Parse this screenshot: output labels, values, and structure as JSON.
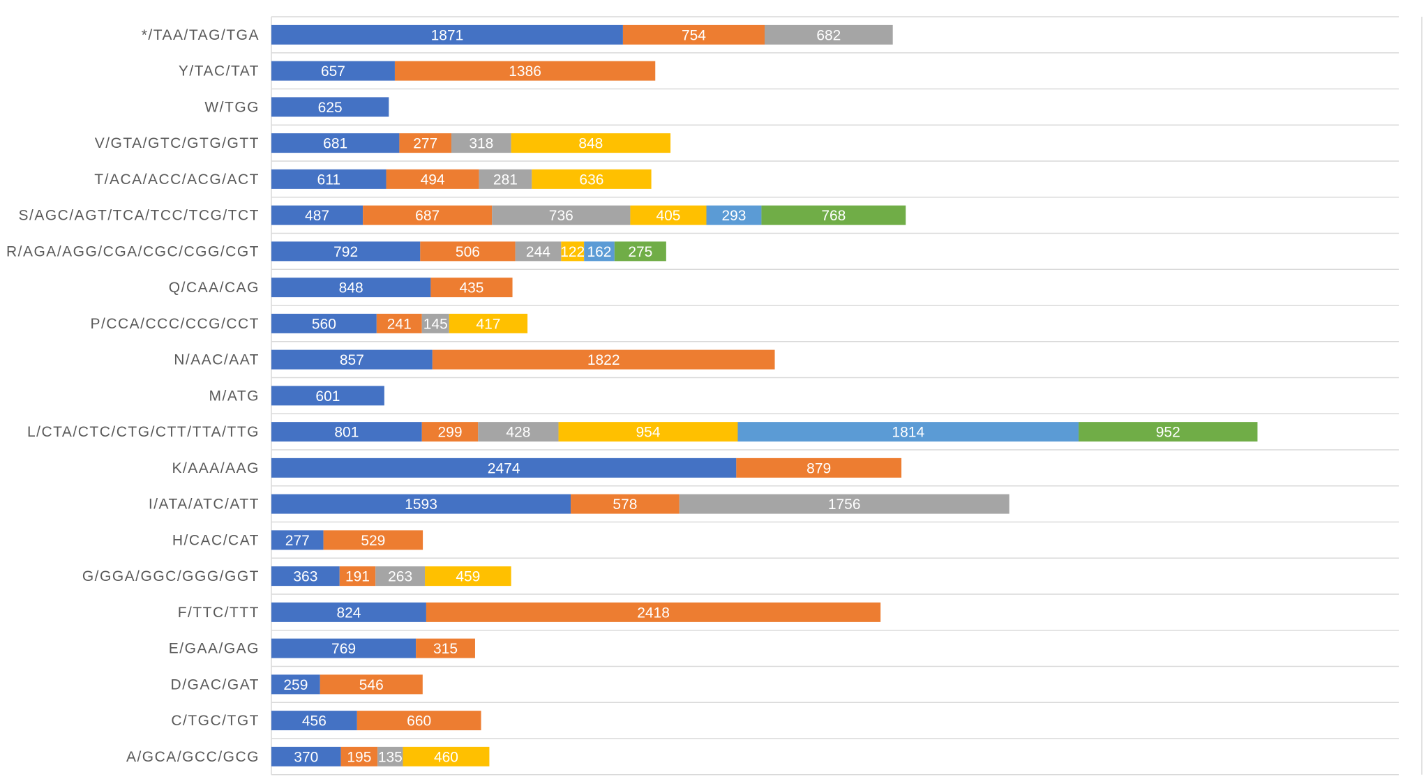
{
  "chart_data": {
    "type": "bar",
    "orientation": "horizontal",
    "stacked": true,
    "grid": true,
    "categories": [
      "*/TAA/TAG/TGA",
      "Y/TAC/TAT",
      "W/TGG",
      "V/GTA/GTC/GTG/GTT",
      "T/ACA/ACC/ACG/ACT",
      "S/AGC/AGT/TCA/TCC/TCG/TCT",
      "R/AGA/AGG/CGA/CGC/CGG/CGT",
      "Q/CAA/CAG",
      "P/CCA/CCC/CCG/CCT",
      "N/AAC/AAT",
      "M/ATG",
      "L/CTA/CTC/CTG/CTT/TTA/TTG",
      "K/AAA/AAG",
      "I/ATA/ATC/ATT",
      "H/CAC/CAT",
      "G/GGA/GGC/GGG/GGT",
      "F/TTC/TTT",
      "E/GAA/GAG",
      "D/GAC/GAT",
      "C/TGC/TGT",
      "A/GCA/GCC/GCG"
    ],
    "series_colors": [
      "#4472c4",
      "#ed7d31",
      "#a5a5a5",
      "#ffc000",
      "#5b9bd5",
      "#70ad47"
    ],
    "series": [
      {
        "values": [
          1871,
          657,
          625,
          681,
          611,
          487,
          792,
          848,
          560,
          857,
          601,
          801,
          2474,
          1593,
          277,
          363,
          824,
          769,
          259,
          456,
          370
        ]
      },
      {
        "values": [
          754,
          1386,
          null,
          277,
          494,
          687,
          506,
          435,
          241,
          1822,
          null,
          299,
          879,
          578,
          529,
          191,
          2418,
          315,
          546,
          660,
          195
        ]
      },
      {
        "values": [
          682,
          null,
          null,
          318,
          281,
          736,
          244,
          null,
          145,
          null,
          null,
          428,
          null,
          1756,
          null,
          263,
          null,
          null,
          null,
          null,
          135
        ]
      },
      {
        "values": [
          null,
          null,
          null,
          848,
          636,
          405,
          122,
          null,
          417,
          null,
          null,
          954,
          null,
          null,
          null,
          459,
          null,
          null,
          null,
          null,
          460
        ]
      },
      {
        "values": [
          null,
          null,
          null,
          null,
          null,
          293,
          162,
          null,
          null,
          null,
          null,
          1814,
          null,
          null,
          null,
          null,
          null,
          null,
          null,
          null,
          null
        ]
      },
      {
        "values": [
          null,
          null,
          null,
          null,
          null,
          768,
          275,
          null,
          null,
          null,
          null,
          952,
          null,
          null,
          null,
          null,
          null,
          null,
          null,
          null,
          null
        ]
      }
    ],
    "xlim": [
      0,
      6000
    ]
  }
}
